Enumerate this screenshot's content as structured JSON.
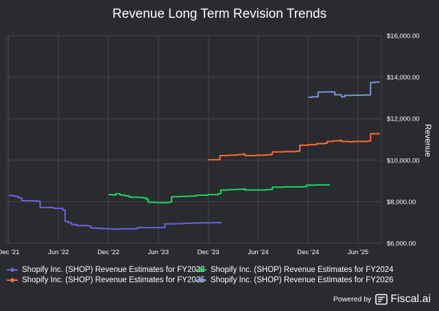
{
  "footer": {
    "powered_label": "Powered by",
    "brand_label": "Fiscal.ai"
  },
  "chart_data": {
    "type": "line",
    "title": "Revenue Long Term Revision Trends",
    "xlabel": "",
    "ylabel": "Revenue",
    "x_ticks": [
      {
        "label": "Dec '21",
        "t": 0
      },
      {
        "label": "Jun '22",
        "t": 6
      },
      {
        "label": "Dec '22",
        "t": 12
      },
      {
        "label": "Jun '23",
        "t": 18
      },
      {
        "label": "Dec '23",
        "t": 24
      },
      {
        "label": "Jun '24",
        "t": 30
      },
      {
        "label": "Dec '24",
        "t": 36
      },
      {
        "label": "Jun '25",
        "t": 42
      }
    ],
    "x_range": [
      -0.2,
      44.8
    ],
    "ylim": [
      6000,
      16000
    ],
    "y_ticks": [
      {
        "label": "$6,000.00",
        "v": 6000
      },
      {
        "label": "$8,000.00",
        "v": 8000
      },
      {
        "label": "$10,000.00",
        "v": 10000
      },
      {
        "label": "$12,000.00",
        "v": 12000
      },
      {
        "label": "$14,000.00",
        "v": 14000
      },
      {
        "label": "$16,000.00",
        "v": 16000
      }
    ],
    "x_unit": "months since Dec '21",
    "grid": true,
    "legend_position": "bottom",
    "series": [
      {
        "name": "Shopify Inc. (SHOP) Revenue Estimates for FY2023",
        "color": "#6e61e6",
        "points": [
          [
            0,
            8300
          ],
          [
            0.4,
            8280
          ],
          [
            0.8,
            8250
          ],
          [
            1.2,
            8180
          ],
          [
            1.6,
            8050
          ],
          [
            2.4,
            8040
          ],
          [
            3.5,
            8020
          ],
          [
            3.8,
            7720
          ],
          [
            5.4,
            7680
          ],
          [
            6.5,
            7600
          ],
          [
            6.8,
            7050
          ],
          [
            7.2,
            6980
          ],
          [
            7.6,
            6900
          ],
          [
            8.2,
            6850
          ],
          [
            9.5,
            6830
          ],
          [
            9.9,
            6730
          ],
          [
            10.5,
            6720
          ],
          [
            11.2,
            6700
          ],
          [
            12.0,
            6690
          ],
          [
            12.5,
            6680
          ],
          [
            13.5,
            6690
          ],
          [
            14.5,
            6690
          ],
          [
            15.2,
            6700
          ],
          [
            15.5,
            6750
          ],
          [
            16.5,
            6750
          ],
          [
            18.0,
            6750
          ],
          [
            18.7,
            6760
          ],
          [
            18.8,
            6930
          ],
          [
            20,
            6940
          ],
          [
            21,
            6960
          ],
          [
            22,
            6970
          ],
          [
            23,
            6980
          ],
          [
            24.5,
            6990
          ],
          [
            25.6,
            6990
          ]
        ]
      },
      {
        "name": "Shopify Inc. (SHOP) Revenue Estimates for FY2024",
        "color": "#1ed760",
        "points": [
          [
            12.0,
            8340
          ],
          [
            12.5,
            8320
          ],
          [
            12.9,
            8380
          ],
          [
            13.4,
            8320
          ],
          [
            14.0,
            8280
          ],
          [
            14.5,
            8220
          ],
          [
            15.5,
            8200
          ],
          [
            16.2,
            8180
          ],
          [
            16.6,
            8100
          ],
          [
            16.8,
            7970
          ],
          [
            17.5,
            7960
          ],
          [
            18.5,
            7950
          ],
          [
            19.0,
            7960
          ],
          [
            19.4,
            7990
          ],
          [
            19.6,
            8240
          ],
          [
            20.5,
            8250
          ],
          [
            21.5,
            8270
          ],
          [
            22.5,
            8310
          ],
          [
            24.0,
            8340
          ],
          [
            25.2,
            8380
          ],
          [
            25.5,
            8560
          ],
          [
            26.5,
            8580
          ],
          [
            27.5,
            8600
          ],
          [
            28.3,
            8620
          ],
          [
            28.4,
            8560
          ],
          [
            29.5,
            8560
          ],
          [
            31.0,
            8580
          ],
          [
            31.6,
            8600
          ],
          [
            31.7,
            8700
          ],
          [
            33.0,
            8710
          ],
          [
            34.5,
            8710
          ],
          [
            35.5,
            8720
          ],
          [
            35.8,
            8800
          ],
          [
            37.0,
            8810
          ],
          [
            38.6,
            8810
          ]
        ]
      },
      {
        "name": "Shopify Inc. (SHOP) Revenue Estimates for FY2025",
        "color": "#ff6b35",
        "points": [
          [
            24.0,
            10020
          ],
          [
            25.2,
            10030
          ],
          [
            25.4,
            10220
          ],
          [
            26.5,
            10240
          ],
          [
            27.5,
            10270
          ],
          [
            28.2,
            10300
          ],
          [
            28.4,
            10220
          ],
          [
            29.8,
            10240
          ],
          [
            31.0,
            10260
          ],
          [
            31.6,
            10280
          ],
          [
            31.7,
            10400
          ],
          [
            33.0,
            10410
          ],
          [
            34.5,
            10430
          ],
          [
            34.9,
            10440
          ],
          [
            35.0,
            10720
          ],
          [
            36.0,
            10750
          ],
          [
            37.0,
            10800
          ],
          [
            38.0,
            10820
          ],
          [
            38.3,
            10900
          ],
          [
            39.0,
            10930
          ],
          [
            39.8,
            10960
          ],
          [
            40.0,
            10900
          ],
          [
            41.0,
            10880
          ],
          [
            41.4,
            10900
          ],
          [
            43.0,
            10910
          ],
          [
            43.4,
            10930
          ],
          [
            43.5,
            11270
          ],
          [
            44.6,
            11270
          ]
        ]
      },
      {
        "name": "Shopify Inc. (SHOP) Revenue Estimates for FY2026",
        "color": "#7b98d6",
        "points": [
          [
            36.0,
            13030
          ],
          [
            36.5,
            13050
          ],
          [
            37.0,
            13050
          ],
          [
            37.2,
            13280
          ],
          [
            38.0,
            13290
          ],
          [
            38.8,
            13280
          ],
          [
            39.2,
            13150
          ],
          [
            39.6,
            13150
          ],
          [
            40.0,
            13050
          ],
          [
            40.4,
            13120
          ],
          [
            41.5,
            13130
          ],
          [
            42.5,
            13140
          ],
          [
            43.4,
            13150
          ],
          [
            43.5,
            13740
          ],
          [
            44.0,
            13760
          ],
          [
            44.6,
            13760
          ]
        ]
      }
    ]
  }
}
